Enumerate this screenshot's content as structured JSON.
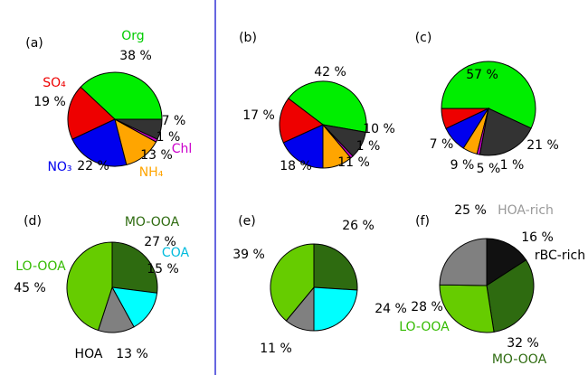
{
  "chart_data": [
    {
      "type": "pie",
      "label": "(a)",
      "categories": [
        "Org",
        "SO₄",
        "NO₃",
        "NH₄",
        "Chl",
        null
      ],
      "values": [
        38,
        19,
        22,
        13,
        1,
        7
      ],
      "value_labels": [
        "38 %",
        "19 %",
        "22 %",
        "13 %",
        "1 %",
        "7 %"
      ],
      "colors": [
        "#00ee00",
        "#ee0000",
        "#0000ee",
        "#ffa500",
        "#cc00cc",
        "#333333"
      ],
      "label_colors": [
        "#00cc00",
        "#ee0000",
        "#0000ee",
        "#ffa500",
        "#cc00cc",
        "#000000"
      ]
    },
    {
      "type": "pie",
      "label": "(b)",
      "categories": [
        null,
        null,
        null,
        null,
        null,
        null
      ],
      "values": [
        42,
        17,
        18,
        11,
        1,
        10
      ],
      "value_labels": [
        "42 %",
        "17 %",
        "18 %",
        "11 %",
        "1 %",
        "10 %"
      ],
      "colors": [
        "#00ee00",
        "#ee0000",
        "#0000ee",
        "#ffa500",
        "#cc00cc",
        "#333333"
      ]
    },
    {
      "type": "pie",
      "label": "(c)",
      "categories": [
        null,
        null,
        null,
        null,
        null,
        null
      ],
      "values": [
        57,
        7,
        9,
        5,
        1,
        21
      ],
      "value_labels": [
        "57 %",
        "7 %",
        "9 %",
        "5 %",
        "1 %",
        "21 %"
      ],
      "colors": [
        "#00ee00",
        "#ee0000",
        "#0000ee",
        "#ffa500",
        "#cc00cc",
        "#333333"
      ]
    },
    {
      "type": "pie",
      "label": "(d)",
      "categories": [
        "MO-OOA",
        "COA",
        "HOA",
        "LO-OOA"
      ],
      "values": [
        27,
        15,
        13,
        45
      ],
      "value_labels": [
        "27 %",
        "15 %",
        "13 %",
        "45 %"
      ],
      "colors": [
        "#2e6b10",
        "#00ffff",
        "#808080",
        "#66cc00"
      ],
      "label_colors": [
        "#2e6b10",
        "#00bbdd",
        "#000000",
        "#33bb00"
      ]
    },
    {
      "type": "pie",
      "label": "(e)",
      "categories": [
        null,
        null,
        null,
        null
      ],
      "values": [
        26,
        24,
        11,
        39
      ],
      "value_labels": [
        "26 %",
        "24 %",
        "11 %",
        "39 %"
      ],
      "colors": [
        "#2e6b10",
        "#00ffff",
        "#808080",
        "#66cc00"
      ]
    },
    {
      "type": "pie",
      "label": "(f)",
      "categories": [
        "rBC-rich",
        "MO-OOA",
        "LO-OOA",
        "HOA-rich"
      ],
      "values": [
        16,
        32,
        28,
        25
      ],
      "value_labels": [
        "16 %",
        "32 %",
        "28 %",
        "25 %"
      ],
      "colors": [
        "#111111",
        "#2e6b10",
        "#66cc00",
        "#808080"
      ],
      "label_colors": [
        "#000000",
        "#2e6b10",
        "#33bb00",
        "#999999"
      ]
    }
  ]
}
